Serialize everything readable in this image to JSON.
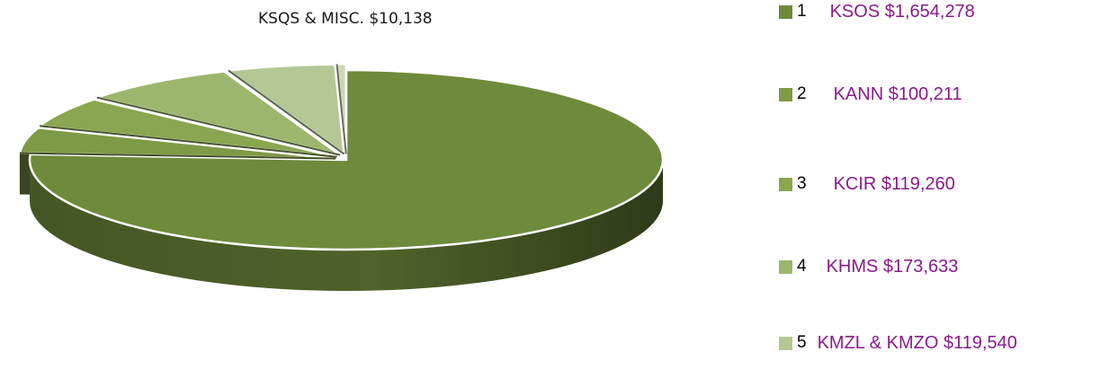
{
  "annotation": "KSQS & MISC.  $10,138",
  "chart_data": {
    "type": "pie",
    "style": "3d-exploded",
    "title": "",
    "legend_position": "right",
    "slices": [
      {
        "index": "1",
        "label": "KSOS $1,654,278",
        "value": 1654278,
        "color": "#6e8a3b"
      },
      {
        "index": "2",
        "label": "KANN $100,211",
        "value": 100211,
        "color": "#7e9a46"
      },
      {
        "index": "3",
        "label": "KCIR $119,260",
        "value": 119260,
        "color": "#8aa651"
      },
      {
        "index": "4",
        "label": "KHMS $173,633",
        "value": 173633,
        "color": "#9db66d"
      },
      {
        "index": "5",
        "label": "KMZL & KMZO $119,540",
        "value": 119540,
        "color": "#b4c895"
      },
      {
        "index": "6",
        "label": "KSQS & MISC.",
        "value": 10138,
        "color": "#cbd8b4"
      }
    ]
  }
}
